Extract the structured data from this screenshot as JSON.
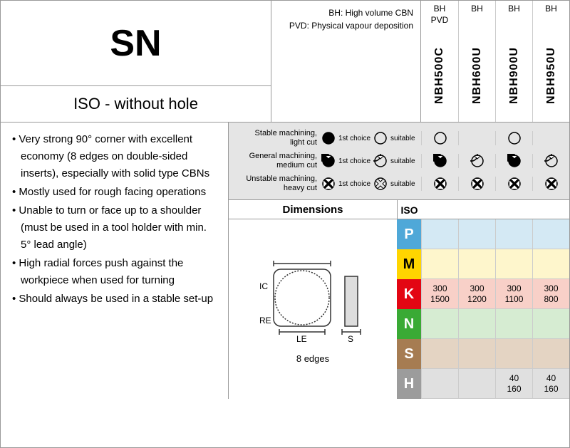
{
  "title": "SN",
  "subtitle": "ISO - without hole",
  "legend": {
    "line1": "BH: High volume CBN",
    "line2": "PVD: Physical vapour deposition"
  },
  "grades": [
    {
      "type": "BH\nPVD",
      "name": "NBH500C"
    },
    {
      "type": "BH",
      "name": "NBH600U"
    },
    {
      "type": "BH",
      "name": "NBH900U"
    },
    {
      "type": "BH",
      "name": "NBH950U"
    }
  ],
  "bullets": [
    "Very strong 90° corner with excellent economy (8 edges on double-sided inserts), especially with solid type CBNs",
    "Mostly used for rough facing operations",
    "Unable to turn or face up to a shoulder (must be used in a tool holder with min. 5° lead angle)",
    "High radial forces push against the workpiece when used for turning",
    "Should always be used in a stable set-up"
  ],
  "suitability": {
    "rows": [
      {
        "label": "Stable machining,\nlight cut",
        "icon": "circle",
        "cells": [
          "suitable",
          "",
          "suitable",
          ""
        ]
      },
      {
        "label": "General machining,\nmedium cut",
        "icon": "notch",
        "cells": [
          "first",
          "suitable",
          "first",
          "suitable"
        ]
      },
      {
        "label": "Unstable machining,\nheavy cut",
        "icon": "cross",
        "cells": [
          "first",
          "first",
          "first",
          "first"
        ]
      }
    ],
    "legend_first": "1st choice",
    "legend_suitable": "suitable"
  },
  "dimensions_label": "Dimensions",
  "iso_label": "ISO",
  "diagram": {
    "ic": "IC",
    "re": "RE",
    "le": "LE",
    "s": "S",
    "caption": "8 edges"
  },
  "iso_rows": [
    {
      "letter": "P",
      "bg": "bg-P",
      "cells": [
        "",
        "",
        "",
        ""
      ]
    },
    {
      "letter": "M",
      "bg": "bg-M",
      "cells": [
        "",
        "",
        "",
        ""
      ]
    },
    {
      "letter": "K",
      "bg": "bg-K",
      "cells": [
        "300\n1500",
        "300\n1200",
        "300\n1100",
        "300\n800"
      ]
    },
    {
      "letter": "N",
      "bg": "bg-N",
      "cells": [
        "",
        "",
        "",
        ""
      ]
    },
    {
      "letter": "S",
      "bg": "bg-S",
      "cells": [
        "",
        "",
        "",
        ""
      ]
    },
    {
      "letter": "H",
      "bg": "bg-H",
      "cells": [
        "",
        "",
        "40\n160",
        "40\n160"
      ]
    }
  ],
  "colors": {
    "border": "#999999",
    "light_border": "#cccccc",
    "suit_bg": "#e5e5e5"
  }
}
